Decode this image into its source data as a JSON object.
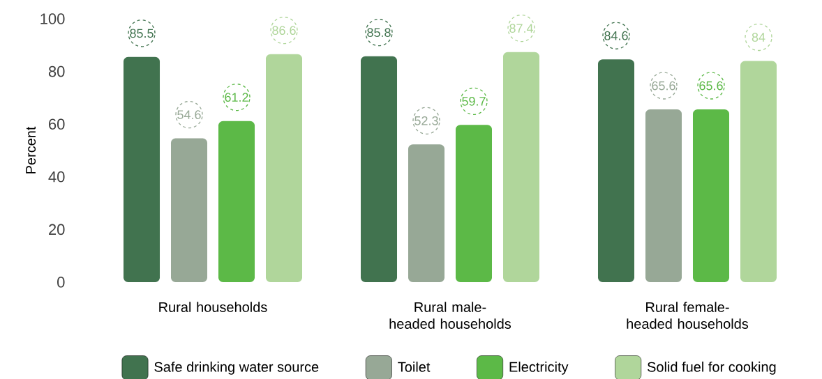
{
  "chart_data": {
    "type": "bar",
    "ylabel": "Percent",
    "categories": [
      "Rural households",
      "Rural male-headed households",
      "Rural female-headed households"
    ],
    "series": [
      {
        "name": "Safe drinking water source",
        "color": "#41734f",
        "values": [
          85.5,
          85.8,
          84.6
        ]
      },
      {
        "name": "Toilet",
        "color": "#97a896",
        "values": [
          54.6,
          52.3,
          65.6
        ]
      },
      {
        "name": "Electricity",
        "color": "#5cb947",
        "values": [
          61.2,
          59.7,
          65.6
        ]
      },
      {
        "name": "Solid fuel for cooking",
        "color": "#b0d69b",
        "values": [
          86.6,
          87.4,
          84
        ]
      }
    ],
    "ylim": [
      0,
      100
    ],
    "yticks": [
      0,
      20,
      40,
      60,
      80,
      100
    ],
    "data_labels": true,
    "legend": "bottom"
  }
}
